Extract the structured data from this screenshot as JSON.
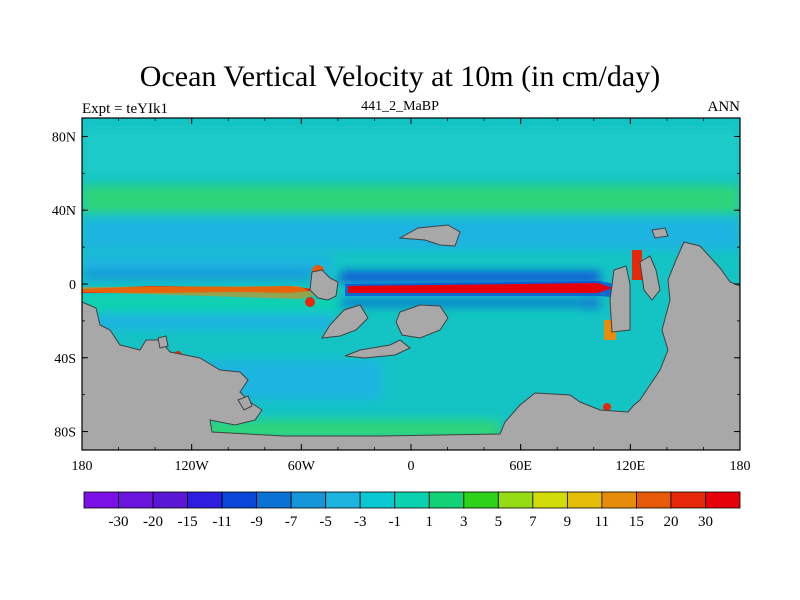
{
  "title": "Ocean Vertical Velocity at 10m (in cm/day)",
  "left_string": "Expt = teYIk1",
  "center_string": "441_2_MaBP",
  "right_string": "ANN",
  "x_ticks": [
    {
      "lon": -180,
      "label": "180"
    },
    {
      "lon": -120,
      "label": "120W"
    },
    {
      "lon": -60,
      "label": "60W"
    },
    {
      "lon": 0,
      "label": "0"
    },
    {
      "lon": 60,
      "label": "60E"
    },
    {
      "lon": 120,
      "label": "120E"
    },
    {
      "lon": 180,
      "label": "180"
    }
  ],
  "y_ticks": [
    {
      "lat": 80,
      "label": "80N"
    },
    {
      "lat": 40,
      "label": "40N"
    },
    {
      "lat": 0,
      "label": "0"
    },
    {
      "lat": -40,
      "label": "40S"
    },
    {
      "lat": -80,
      "label": "80S"
    }
  ],
  "colorbar": {
    "labels": [
      "-30",
      "-20",
      "-15",
      "-11",
      "-9",
      "-7",
      "-5",
      "-3",
      "-1",
      "1",
      "3",
      "5",
      "7",
      "9",
      "11",
      "15",
      "20",
      "30"
    ],
    "colors": [
      "#7a10e6",
      "#6a14de",
      "#5a18d6",
      "#2e1ee0",
      "#0a46d8",
      "#0a72d4",
      "#1496d8",
      "#1eb4e0",
      "#0ac8d2",
      "#0ad2b0",
      "#12d278",
      "#2ed218",
      "#96dc14",
      "#d2dc0a",
      "#e6be0a",
      "#e68c0a",
      "#e65a0a",
      "#e6280a",
      "#e6000a"
    ]
  },
  "colors": {
    "land": "#a8a8a8",
    "background_ocean": "#14c8c8",
    "upwelling": "#e6000a",
    "downwelling": "#2e1ee0"
  }
}
